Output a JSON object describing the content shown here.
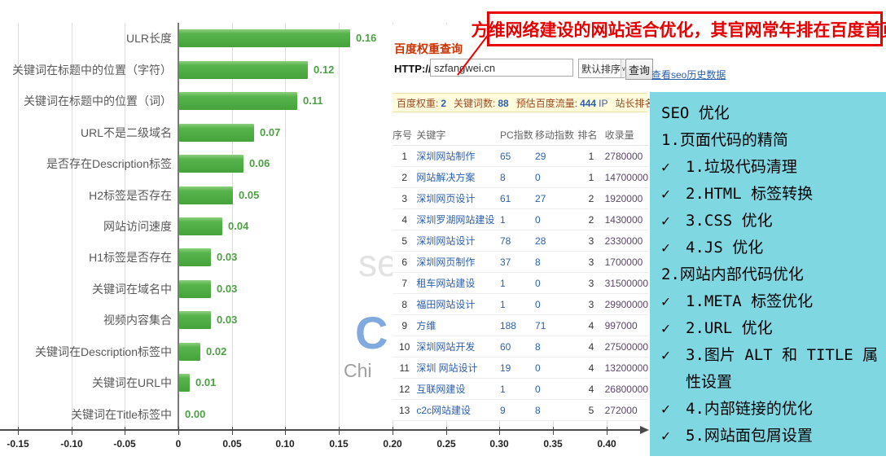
{
  "icons": {
    "check": "✓",
    "dropdown_arrow": "∨",
    "axis_arrow": "right-arrow"
  },
  "callout": {
    "text": "方维网络建设的网站适合优化，其官网常年排在百度首页"
  },
  "chart_data": {
    "type": "bar",
    "orientation": "horizontal",
    "title": "",
    "xlabel": "",
    "ylabel": "",
    "categories": [
      "ULR长度",
      "关键词在标题中的位置（字符）",
      "关键词在标题中的位置（词）",
      "URL不是二级域名",
      "是否存在Description标签",
      "H2标签是否存在",
      "网站访问速度",
      "H1标签是否存在",
      "关键词在域名中",
      "视频内容集合",
      "关键词在Description标签中",
      "关键词在URL中",
      "关键词在Title标签中"
    ],
    "values": [
      0.16,
      0.12,
      0.11,
      0.07,
      0.06,
      0.05,
      0.04,
      0.03,
      0.03,
      0.03,
      0.02,
      0.01,
      0.0
    ],
    "value_labels": [
      "0.16",
      "0.12",
      "0.11",
      "0.07",
      "0.06",
      "0.05",
      "0.04",
      "0.03",
      "0.03",
      "0.03",
      "0.02",
      "0.01",
      "0.00"
    ],
    "x_ticks": [
      "-0.15",
      "-0.10",
      "-0.05",
      "0",
      "0.05",
      "0.10",
      "0.15",
      "0.20",
      "0.25",
      "0.30",
      "0.35",
      "0.40"
    ],
    "xlim": [
      -0.167,
      0.44
    ],
    "grid": "vertical-only",
    "legend": "none",
    "bar_color": "#4ba641",
    "value_label_color": "#4d9f44"
  },
  "seo_tool": {
    "title": "百度权重查询",
    "protocol_label": "HTTP://",
    "url_value": "szfangwei.cn",
    "sort_label": "默认排序",
    "query_label": "查询",
    "history_link": "查看seo历史数据",
    "stats": [
      {
        "label": "百度权重:",
        "value": "2",
        "suffix": ""
      },
      {
        "label": "关键词数:",
        "value": "88",
        "suffix": ""
      },
      {
        "label": "预估百度流量:",
        "value": "444",
        "suffix": "IP"
      },
      {
        "label": "站长排名:",
        "value": "",
        "suffix": ""
      }
    ],
    "table": {
      "headers": [
        "序号",
        "关键字",
        "PC指数",
        "移动指数",
        "排名",
        "收录量"
      ],
      "rows": [
        [
          "1",
          "深圳网站制作",
          "65",
          "29",
          "1",
          "2780000"
        ],
        [
          "2",
          "网站解决方案",
          "8",
          "0",
          "1",
          "14700000"
        ],
        [
          "3",
          "深圳网页设计",
          "61",
          "27",
          "2",
          "1920000"
        ],
        [
          "4",
          "深圳罗湖网站建设",
          "1",
          "0",
          "2",
          "1430000"
        ],
        [
          "5",
          "深圳网站设计",
          "78",
          "28",
          "3",
          "2330000"
        ],
        [
          "6",
          "深圳网页制作",
          "37",
          "8",
          "3",
          "1700000"
        ],
        [
          "7",
          "租车网站建设",
          "1",
          "0",
          "3",
          "31500000"
        ],
        [
          "8",
          "福田网站设计",
          "1",
          "0",
          "3",
          "29900000"
        ],
        [
          "9",
          "方维",
          "188",
          "71",
          "4",
          "997000"
        ],
        [
          "10",
          "深圳网站开发",
          "60",
          "8",
          "4",
          "27500000"
        ],
        [
          "11",
          "深圳 网站设计",
          "19",
          "0",
          "4",
          "13200000"
        ],
        [
          "12",
          "互联网建设",
          "1",
          "0",
          "4",
          "26800000"
        ],
        [
          "13",
          "c2c网站建设",
          "9",
          "8",
          "5",
          "272000"
        ]
      ]
    }
  },
  "checklist": {
    "panel_color": "#7fd7e2",
    "items": [
      {
        "check": false,
        "text": "SEO 优化"
      },
      {
        "check": false,
        "text": "1.页面代码的精简"
      },
      {
        "check": true,
        "text": "1.垃圾代码清理"
      },
      {
        "check": true,
        "text": "2.HTML 标签转换"
      },
      {
        "check": true,
        "text": "3.CSS 优化"
      },
      {
        "check": true,
        "text": "4.JS 优化"
      },
      {
        "check": false,
        "text": "2.网站内部代码优化"
      },
      {
        "check": true,
        "text": "1.META 标签优化"
      },
      {
        "check": true,
        "text": "2.URL 优化"
      },
      {
        "check": true,
        "text": "3.图片 ALT 和 TITLE 属性设置"
      },
      {
        "check": true,
        "text": "4.内部链接的优化"
      },
      {
        "check": true,
        "text": "5.网站面包屑设置"
      }
    ]
  },
  "watermark": {
    "se": "se",
    "c": "C",
    "chi": "Chi"
  }
}
